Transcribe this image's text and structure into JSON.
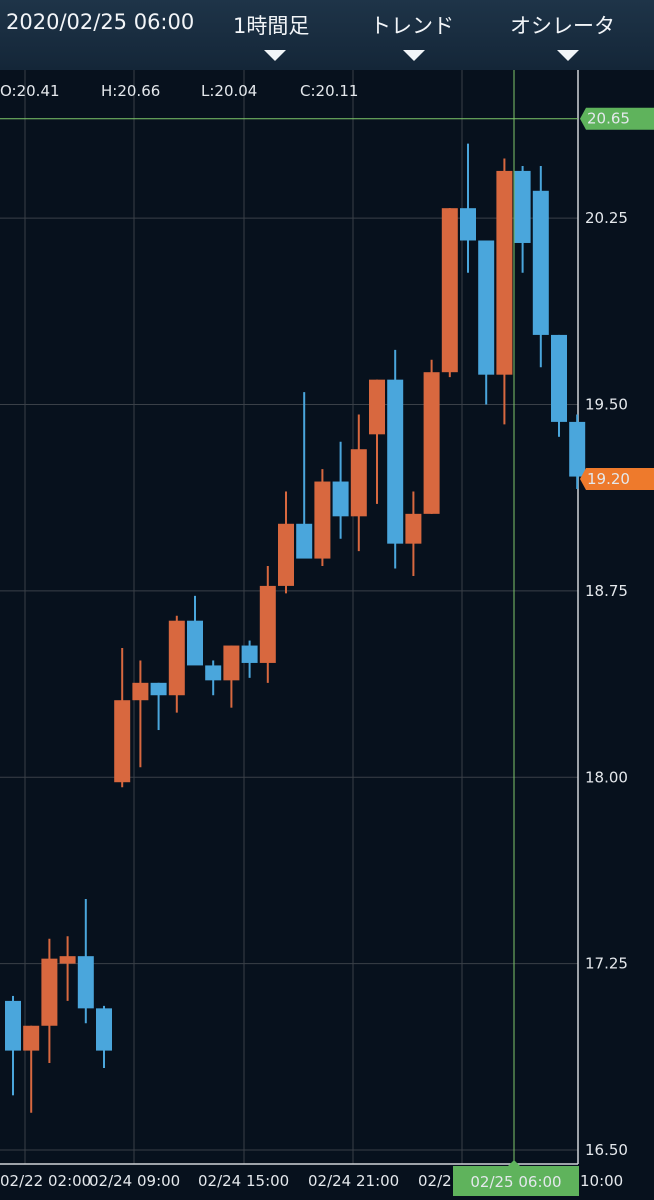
{
  "header": {
    "datetime": "2020/02/25 06:00",
    "timeframe_label": "1時間足",
    "trend_label": "トレンド",
    "oscillator_label": "オシレータ"
  },
  "ohlc": {
    "open": "O:20.41",
    "high": "H:20.66",
    "low": "L:20.04",
    "close": "C:20.11"
  },
  "badges": {
    "crosshair_price": "20.65",
    "current_price": "19.20",
    "crosshair_time": "02/25 06:00"
  },
  "colors": {
    "bull": "#d8683f",
    "bear": "#4aa6dc",
    "background": "#07111d",
    "grid": "#3a4048",
    "crosshair": "#7fc76a",
    "badge_green": "#5fb35c",
    "badge_orange": "#ee7a2c"
  },
  "chart_data": {
    "type": "candlestick",
    "ylim": [
      16.5,
      20.8
    ],
    "y_ticks": [
      20.25,
      19.5,
      18.75,
      18.0,
      17.25,
      16.5
    ],
    "y_tick_labels": [
      "20.25",
      "19.50",
      "18.75",
      "18.00",
      "17.25",
      "16.50"
    ],
    "x_tick_labels": [
      "02/22 02:00",
      "02/24 09:00",
      "02/24 15:00",
      "02/24 21:00",
      "02/2",
      "10:00"
    ],
    "crosshair_price": 20.65,
    "current_price": 19.2,
    "candles": [
      {
        "o": 17.1,
        "h": 17.12,
        "l": 16.72,
        "c": 16.9
      },
      {
        "o": 16.9,
        "h": 17.0,
        "l": 16.65,
        "c": 17.0
      },
      {
        "o": 17.0,
        "h": 17.35,
        "l": 16.85,
        "c": 17.27
      },
      {
        "o": 17.25,
        "h": 17.36,
        "l": 17.1,
        "c": 17.28
      },
      {
        "o": 17.28,
        "h": 17.51,
        "l": 17.01,
        "c": 17.07
      },
      {
        "o": 17.07,
        "h": 17.08,
        "l": 16.83,
        "c": 16.9
      },
      {
        "o": 17.98,
        "h": 18.52,
        "l": 17.96,
        "c": 18.31
      },
      {
        "o": 18.31,
        "h": 18.47,
        "l": 18.04,
        "c": 18.38
      },
      {
        "o": 18.38,
        "h": 18.38,
        "l": 18.19,
        "c": 18.33
      },
      {
        "o": 18.33,
        "h": 18.65,
        "l": 18.26,
        "c": 18.63
      },
      {
        "o": 18.63,
        "h": 18.73,
        "l": 18.46,
        "c": 18.45
      },
      {
        "o": 18.45,
        "h": 18.47,
        "l": 18.33,
        "c": 18.39
      },
      {
        "o": 18.39,
        "h": 18.53,
        "l": 18.28,
        "c": 18.53
      },
      {
        "o": 18.53,
        "h": 18.55,
        "l": 18.4,
        "c": 18.46
      },
      {
        "o": 18.46,
        "h": 18.85,
        "l": 18.38,
        "c": 18.77
      },
      {
        "o": 18.77,
        "h": 19.15,
        "l": 18.74,
        "c": 19.02
      },
      {
        "o": 19.02,
        "h": 19.55,
        "l": 18.92,
        "c": 18.88
      },
      {
        "o": 18.88,
        "h": 19.24,
        "l": 18.85,
        "c": 19.19
      },
      {
        "o": 19.19,
        "h": 19.35,
        "l": 18.96,
        "c": 19.05
      },
      {
        "o": 19.05,
        "h": 19.46,
        "l": 18.91,
        "c": 19.32
      },
      {
        "o": 19.38,
        "h": 19.6,
        "l": 19.1,
        "c": 19.6
      },
      {
        "o": 19.6,
        "h": 19.72,
        "l": 18.84,
        "c": 18.94
      },
      {
        "o": 18.94,
        "h": 19.15,
        "l": 18.81,
        "c": 19.06
      },
      {
        "o": 19.06,
        "h": 19.68,
        "l": 19.06,
        "c": 19.63
      },
      {
        "o": 19.63,
        "h": 20.29,
        "l": 19.61,
        "c": 20.29
      },
      {
        "o": 20.29,
        "h": 20.55,
        "l": 20.03,
        "c": 20.16
      },
      {
        "o": 20.16,
        "h": 20.16,
        "l": 19.5,
        "c": 19.62
      },
      {
        "o": 19.62,
        "h": 20.49,
        "l": 19.42,
        "c": 20.44
      },
      {
        "o": 20.44,
        "h": 20.46,
        "l": 20.03,
        "c": 20.15
      },
      {
        "o": 20.36,
        "h": 20.46,
        "l": 19.65,
        "c": 19.78
      },
      {
        "o": 19.78,
        "h": 19.78,
        "l": 19.37,
        "c": 19.43
      },
      {
        "o": 19.43,
        "h": 19.46,
        "l": 19.16,
        "c": 19.21
      }
    ]
  }
}
